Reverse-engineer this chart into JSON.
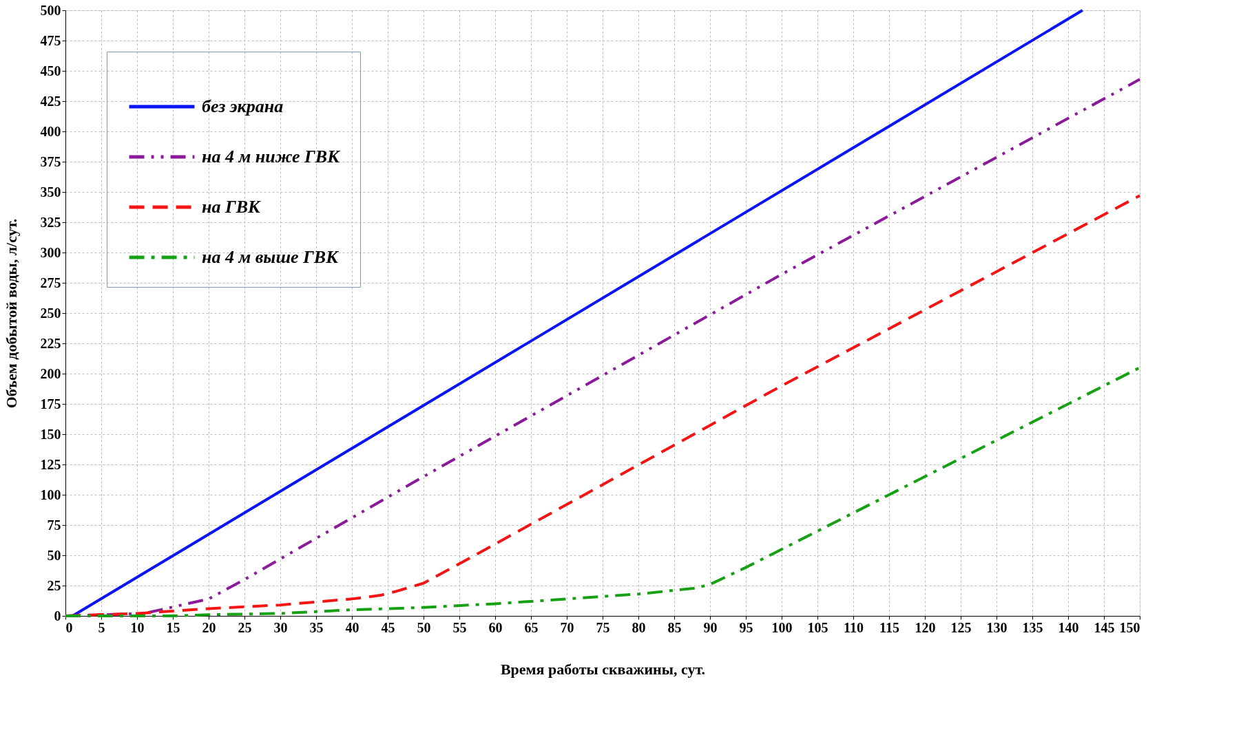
{
  "chart_data": {
    "type": "line",
    "xlabel": "Время работы скважины, сут.",
    "ylabel": "Объем добытой воды, л/сут.",
    "xlim": [
      0,
      150
    ],
    "xticks": [
      0,
      5,
      10,
      15,
      20,
      25,
      30,
      35,
      40,
      45,
      50,
      55,
      60,
      65,
      70,
      75,
      80,
      85,
      90,
      95,
      100,
      105,
      110,
      115,
      120,
      125,
      130,
      135,
      140,
      145,
      150
    ],
    "ylim": [
      0,
      500
    ],
    "yticks": [
      0,
      25,
      50,
      75,
      100,
      125,
      150,
      175,
      200,
      225,
      250,
      275,
      300,
      325,
      350,
      375,
      400,
      425,
      450,
      475,
      500
    ],
    "grid": true,
    "legend": "top left",
    "marker": "none",
    "series": [
      {
        "name": "без экрана",
        "color": "#0a14f5",
        "line_style": "solid",
        "x": [
          1,
          142
        ],
        "values": [
          0,
          500
        ]
      },
      {
        "name": "на 4 м ниже ГВК",
        "color": "#8b1a9a",
        "line_style": "dashdotdot",
        "x": [
          0,
          11,
          14,
          17,
          20,
          25,
          50,
          100,
          150
        ],
        "values": [
          0,
          2,
          6,
          10,
          14,
          30,
          115,
          282,
          443
        ]
      },
      {
        "name": "на ГВК",
        "color": "#f51414",
        "line_style": "dashed",
        "x": [
          0,
          10,
          15,
          20,
          30,
          40,
          44,
          46,
          50,
          55,
          100,
          150
        ],
        "values": [
          0,
          2,
          4,
          6,
          9,
          14,
          17,
          20,
          27,
          43,
          190,
          347
        ]
      },
      {
        "name": "на 4 м выше ГВК",
        "color": "#16a014",
        "line_style": "dashdot",
        "x": [
          0,
          10,
          15,
          20,
          30,
          40,
          50,
          60,
          70,
          80,
          88,
          90,
          95,
          100,
          150
        ],
        "values": [
          0,
          0,
          0,
          1,
          2,
          5,
          7,
          10,
          14,
          18,
          23,
          26,
          40,
          55,
          205
        ]
      }
    ]
  }
}
